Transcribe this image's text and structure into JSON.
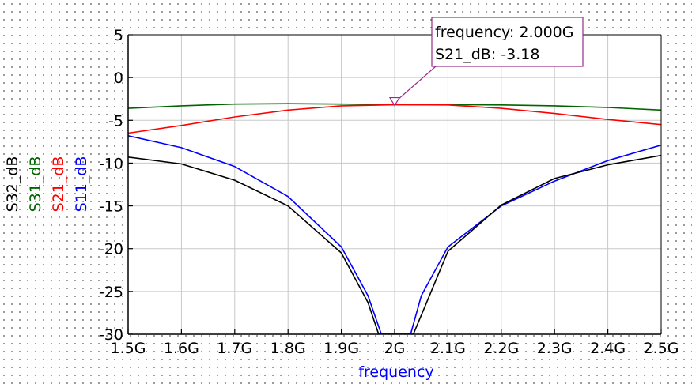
{
  "chart_data": {
    "type": "line",
    "xlabel": "frequency",
    "x_unit": "GHz",
    "xlim": [
      1.5,
      2.5
    ],
    "ylim": [
      -30,
      5
    ],
    "x_ticks": [
      1.5,
      1.6,
      1.7,
      1.8,
      1.9,
      2.0,
      2.1,
      2.2,
      2.3,
      2.4,
      2.5
    ],
    "x_tick_labels": [
      "1.5G",
      "1.6G",
      "1.7G",
      "1.8G",
      "1.9G",
      "2G",
      "2.1G",
      "2.2G",
      "2.3G",
      "2.4G",
      "2.5G"
    ],
    "y_ticks": [
      5,
      0,
      -5,
      -10,
      -15,
      -20,
      -25,
      -30
    ],
    "y_tick_labels": [
      "5",
      "0",
      "-5",
      "-10",
      "-15",
      "-20",
      "-25",
      "-30"
    ],
    "grid": true,
    "background_dot_grid": true,
    "ylabels": [
      {
        "text": "S32_dB",
        "color": "#000000"
      },
      {
        "text": "S31_dB",
        "color": "#006400"
      },
      {
        "text": "S21_dB",
        "color": "#ff0000"
      },
      {
        "text": "S11_dB",
        "color": "#0000ff"
      }
    ],
    "series": [
      {
        "name": "S31_dB",
        "color": "#006400",
        "x": [
          1.5,
          1.6,
          1.7,
          1.8,
          1.9,
          2.0,
          2.1,
          2.2,
          2.3,
          2.4,
          2.5
        ],
        "y": [
          -3.6,
          -3.3,
          -3.1,
          -3.05,
          -3.1,
          -3.15,
          -3.15,
          -3.2,
          -3.3,
          -3.5,
          -3.8
        ]
      },
      {
        "name": "S21_dB",
        "color": "#ff0000",
        "x": [
          1.5,
          1.6,
          1.7,
          1.8,
          1.9,
          2.0,
          2.1,
          2.2,
          2.3,
          2.4,
          2.5
        ],
        "y": [
          -6.5,
          -5.6,
          -4.6,
          -3.8,
          -3.3,
          -3.18,
          -3.2,
          -3.6,
          -4.2,
          -4.9,
          -5.5
        ]
      },
      {
        "name": "S11_dB",
        "color": "#0000ff",
        "x": [
          1.5,
          1.6,
          1.7,
          1.8,
          1.9,
          1.95,
          1.975,
          2.03,
          2.05,
          2.1,
          2.2,
          2.3,
          2.4,
          2.5
        ],
        "y": [
          -6.8,
          -8.2,
          -10.4,
          -13.9,
          -19.8,
          -25.5,
          -30.0,
          -30.0,
          -25.5,
          -19.8,
          -15.0,
          -12.1,
          -9.7,
          -7.9
        ]
      },
      {
        "name": "S32_dB",
        "color": "#000000",
        "x": [
          1.5,
          1.6,
          1.7,
          1.8,
          1.9,
          1.95,
          1.97,
          2.035,
          2.06,
          2.1,
          2.2,
          2.3,
          2.4,
          2.5
        ],
        "y": [
          -9.3,
          -10.1,
          -12.0,
          -15.0,
          -20.5,
          -26.3,
          -30.0,
          -30.0,
          -26.3,
          -20.3,
          -14.9,
          -11.8,
          -10.2,
          -9.1
        ]
      }
    ],
    "marker": {
      "series": "S21_dB",
      "x": 2.0,
      "y": -3.18,
      "lines": [
        "frequency: 2.000G",
        "S21_dB: -3.18"
      ]
    }
  }
}
